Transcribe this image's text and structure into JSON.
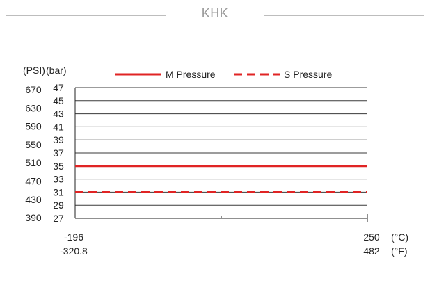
{
  "title": "KHK",
  "chart_data": {
    "type": "line",
    "unit_labels": {
      "psi": "(PSI)",
      "bar": "(bar)",
      "celsius": "(°C)",
      "fahrenheit": "(°F)"
    },
    "y_bar_ticks": [
      "47",
      "45",
      "43",
      "41",
      "39",
      "37",
      "35",
      "33",
      "31",
      "29",
      "27"
    ],
    "y_psi_ticks": [
      "670",
      "630",
      "590",
      "550",
      "510",
      "470",
      "430",
      "390"
    ],
    "ylim_bar": [
      27,
      47
    ],
    "x_celsius_ticks": [
      "-196",
      "250"
    ],
    "x_fahrenheit_ticks": [
      "-320.8",
      "482"
    ],
    "xlim_celsius": [
      -196,
      250
    ],
    "grid": "horizontal",
    "legend_position": "top",
    "series": [
      {
        "name": "M Pressure",
        "style": "solid",
        "color": "#e02424",
        "x": [
          -196,
          250
        ],
        "y": [
          35,
          35
        ]
      },
      {
        "name": "S Pressure",
        "style": "dashed",
        "color": "#e02424",
        "x": [
          -196,
          250
        ],
        "y": [
          31,
          31
        ]
      }
    ]
  }
}
